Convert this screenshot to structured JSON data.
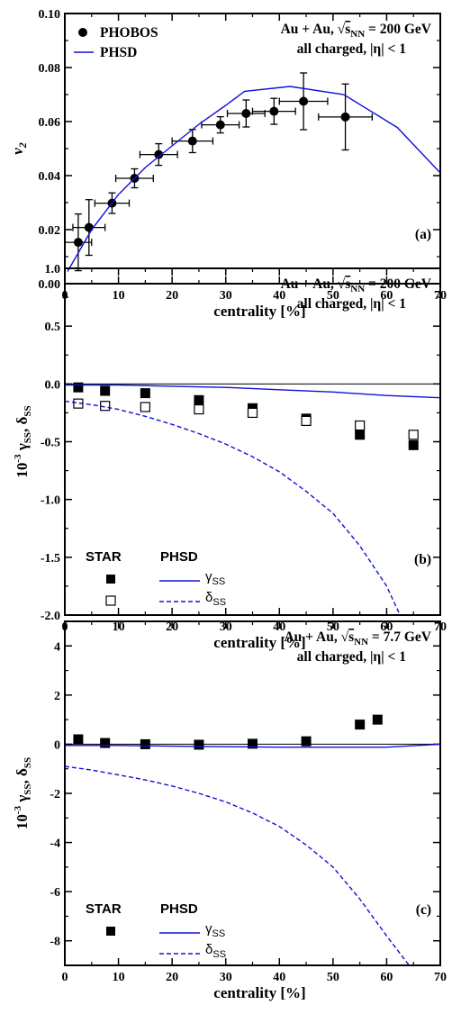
{
  "chart_data": [
    {
      "type": "scatter",
      "panel": "(a)",
      "xlabel": "centrality [%]",
      "ylabel": "v",
      "ylabel_sub": "2",
      "xlim": [
        0,
        70
      ],
      "ylim": [
        0,
        0.1
      ],
      "xticks": [
        "0",
        "10",
        "20",
        "30",
        "40",
        "50",
        "60",
        "70"
      ],
      "yticks": [
        "0.00",
        "0.02",
        "0.04",
        "0.06",
        "0.08",
        "0.10"
      ],
      "annotation": {
        "line1_pre": "Au + Au, ",
        "line1_sqrt": "s",
        "line1_sub": "NN",
        "line1_post": " = 200 GeV",
        "line2": "all charged, |η| < 1"
      },
      "legend": [
        {
          "label": "PHOBOS",
          "marker": "filled-circle"
        },
        {
          "label": "PHSD",
          "marker": "solid-line"
        }
      ],
      "series": [
        {
          "name": "PHOBOS",
          "style": "points",
          "points": [
            {
              "x": 2.5,
              "y": 0.0153,
              "xerr": 2.5,
              "yerr": 0.0105
            },
            {
              "x": 4.5,
              "y": 0.0208,
              "xerr": 3.0,
              "yerr": 0.0103
            },
            {
              "x": 8.8,
              "y": 0.0298,
              "xerr": 3.2,
              "yerr": 0.0038
            },
            {
              "x": 13.0,
              "y": 0.039,
              "xerr": 3.5,
              "yerr": 0.0035
            },
            {
              "x": 17.5,
              "y": 0.0478,
              "xerr": 3.5,
              "yerr": 0.004
            },
            {
              "x": 23.8,
              "y": 0.0528,
              "xerr": 3.8,
              "yerr": 0.0043
            },
            {
              "x": 29.0,
              "y": 0.0588,
              "xerr": 3.5,
              "yerr": 0.003
            },
            {
              "x": 33.8,
              "y": 0.063,
              "xerr": 3.5,
              "yerr": 0.005
            },
            {
              "x": 39.0,
              "y": 0.0638,
              "xerr": 4.0,
              "yerr": 0.0048
            },
            {
              "x": 44.5,
              "y": 0.0675,
              "xerr": 4.5,
              "yerr": 0.0105
            },
            {
              "x": 52.3,
              "y": 0.0617,
              "xerr": 5.0,
              "yerr": 0.0122
            }
          ]
        },
        {
          "name": "PHSD",
          "style": "solid",
          "x": [
            0.5,
            5,
            10,
            15,
            20,
            25,
            30,
            33.5,
            42,
            52,
            62,
            70
          ],
          "y": [
            0.0045,
            0.02,
            0.033,
            0.043,
            0.051,
            0.059,
            0.066,
            0.0712,
            0.073,
            0.07,
            0.0578,
            0.041
          ]
        }
      ]
    },
    {
      "type": "scatter",
      "panel": "(b)",
      "xlabel": "centrality [%]",
      "ylabel_pre": "10",
      "ylabel_exp": "-3",
      "ylabel_g": "γ",
      "ylabel_d": "δ",
      "ylabel_sub": "SS",
      "xlim": [
        0,
        70
      ],
      "ylim": [
        -2.0,
        1.0
      ],
      "xticks": [
        "0",
        "10",
        "20",
        "30",
        "40",
        "50",
        "60",
        "70"
      ],
      "yticks": [
        "-2.0",
        "-1.5",
        "-1.0",
        "-0.5",
        "0.0",
        "0.5",
        "1.0"
      ],
      "annotation": {
        "line1_pre": "Au + Au, ",
        "line1_sqrt": "s",
        "line1_sub": "NN",
        "line1_post": " = 200 GeV",
        "line2": "all charged, |η| < 1"
      },
      "legend": {
        "star_title": "STAR",
        "phsd_title": "PHSD",
        "gamma_sym": "γ",
        "delta_sym": "δ",
        "sub": "SS"
      },
      "series": [
        {
          "name": "γSS STAR",
          "style": "filled-square",
          "x": [
            2.5,
            7.5,
            15,
            25,
            35,
            45,
            55,
            65
          ],
          "y": [
            -0.03,
            -0.06,
            -0.08,
            -0.14,
            -0.21,
            -0.3,
            -0.44,
            -0.53
          ]
        },
        {
          "name": "δSS STAR",
          "style": "open-square",
          "x": [
            2.5,
            7.5,
            15,
            25,
            35,
            45,
            55,
            65
          ],
          "y": [
            -0.17,
            -0.19,
            -0.2,
            -0.22,
            -0.25,
            -0.32,
            -0.36,
            -0.44
          ]
        },
        {
          "name": "γSS PHSD",
          "style": "solid",
          "x": [
            0,
            10,
            20,
            30,
            40,
            50,
            60,
            70
          ],
          "y": [
            -0.01,
            -0.01,
            -0.02,
            -0.03,
            -0.05,
            -0.07,
            -0.1,
            -0.12
          ]
        },
        {
          "name": "δSS PHSD",
          "style": "dashed",
          "x": [
            0,
            5,
            10,
            15,
            20,
            25,
            30,
            35,
            40,
            45,
            50,
            55,
            60,
            62.5
          ],
          "y": [
            -0.15,
            -0.18,
            -0.22,
            -0.28,
            -0.35,
            -0.43,
            -0.52,
            -0.63,
            -0.76,
            -0.93,
            -1.12,
            -1.4,
            -1.75,
            -2.0
          ]
        }
      ]
    },
    {
      "type": "scatter",
      "panel": "(c)",
      "xlabel": "centrality [%]",
      "ylabel_pre": "10",
      "ylabel_exp": "-3",
      "ylabel_g": "γ",
      "ylabel_d": "δ",
      "ylabel_sub": "SS",
      "xlim": [
        0,
        70
      ],
      "ylim": [
        -9,
        5
      ],
      "xticks": [
        "0",
        "10",
        "20",
        "30",
        "40",
        "50",
        "60",
        "70"
      ],
      "yticks": [
        "-8",
        "-6",
        "-4",
        "-2",
        "0",
        "2",
        "4"
      ],
      "annotation": {
        "line1_pre": "Au + Au, ",
        "line1_sqrt": "s",
        "line1_sub": "NN",
        "line1_post": " = 7.7 GeV",
        "line2": "all charged, |η| < 1"
      },
      "legend": {
        "star_title": "STAR",
        "phsd_title": "PHSD",
        "gamma_sym": "γ",
        "delta_sym": "δ",
        "sub": "SS"
      },
      "series": [
        {
          "name": "γSS STAR",
          "style": "filled-square",
          "x": [
            2.5,
            7.5,
            15,
            25,
            35,
            45,
            55,
            58.3
          ],
          "y": [
            0.2,
            0.05,
            0.0,
            -0.02,
            0.02,
            0.12,
            0.8,
            1.0
          ]
        },
        {
          "name": "γSS PHSD",
          "style": "solid",
          "x": [
            0,
            10,
            20,
            30,
            40,
            50,
            60,
            70
          ],
          "y": [
            -0.05,
            -0.05,
            -0.08,
            -0.1,
            -0.12,
            -0.12,
            -0.12,
            0.0
          ]
        },
        {
          "name": "δSS PHSD",
          "style": "dashed",
          "x": [
            0,
            5,
            10,
            15,
            20,
            25,
            30,
            35,
            40,
            45,
            50,
            55,
            60,
            64.2
          ],
          "y": [
            -0.9,
            -1.05,
            -1.25,
            -1.45,
            -1.7,
            -2.0,
            -2.35,
            -2.8,
            -3.35,
            -4.1,
            -5.0,
            -6.3,
            -7.8,
            -9.0
          ]
        }
      ]
    }
  ]
}
